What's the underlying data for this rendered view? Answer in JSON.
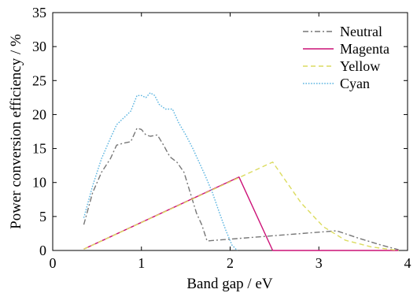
{
  "chart_data": {
    "type": "line",
    "title": "",
    "xlabel": "Band gap / eV",
    "ylabel": "Power conversion efficiency / %",
    "xlim": [
      0,
      4
    ],
    "ylim": [
      0,
      35
    ],
    "xticks": [
      0,
      1,
      2,
      3,
      4
    ],
    "yticks": [
      0,
      5,
      10,
      15,
      20,
      25,
      30,
      35
    ],
    "xtick_labels": [
      "0",
      "1",
      "2",
      "3",
      "4"
    ],
    "ytick_labels": [
      "0",
      "5",
      "10",
      "15",
      "20",
      "25",
      "30",
      "35"
    ],
    "grid": false,
    "legend_position": "top-right",
    "series": [
      {
        "name": "Neutral",
        "color": "#777777",
        "dash": "dashdot",
        "x": [
          0.35,
          0.45,
          0.55,
          0.65,
          0.72,
          0.8,
          0.88,
          0.95,
          1.0,
          1.05,
          1.1,
          1.18,
          1.25,
          1.32,
          1.4,
          1.48,
          1.55,
          1.62,
          1.68,
          1.74,
          3.2,
          3.45,
          3.7,
          3.9
        ],
        "y": [
          3.8,
          8.5,
          11.5,
          13.5,
          15.5,
          15.8,
          16.0,
          18.0,
          17.8,
          17.0,
          16.8,
          17.0,
          15.5,
          13.8,
          13.0,
          11.5,
          8.5,
          5.5,
          3.8,
          1.4,
          2.9,
          1.8,
          0.8,
          0.1
        ]
      },
      {
        "name": "Magenta",
        "color": "#cc1177",
        "dash": "solid",
        "x": [
          0.35,
          2.1,
          2.48,
          3.9
        ],
        "y": [
          0.2,
          10.8,
          0.0,
          0.0
        ]
      },
      {
        "name": "Yellow",
        "color": "#dcdc60",
        "dash": "dashed",
        "x": [
          0.35,
          2.48,
          2.8,
          3.05,
          3.3,
          3.6,
          3.9
        ],
        "y": [
          0.2,
          13.0,
          7.0,
          3.5,
          1.5,
          0.5,
          0.0
        ]
      },
      {
        "name": "Cyan",
        "color": "#5ab4e0",
        "dash": "dotted",
        "x": [
          0.35,
          0.45,
          0.55,
          0.65,
          0.72,
          0.8,
          0.88,
          0.95,
          1.0,
          1.05,
          1.1,
          1.15,
          1.2,
          1.27,
          1.35,
          1.42,
          1.5,
          1.58,
          1.65,
          1.72,
          1.8,
          1.88,
          1.95,
          2.02,
          2.08
        ],
        "y": [
          4.8,
          9.5,
          13.5,
          16.5,
          18.5,
          19.5,
          20.5,
          22.8,
          22.8,
          22.5,
          23.2,
          22.8,
          21.5,
          20.8,
          20.8,
          18.8,
          17.0,
          15.0,
          13.0,
          11.0,
          8.5,
          5.5,
          3.0,
          0.8,
          0.0
        ]
      }
    ]
  }
}
